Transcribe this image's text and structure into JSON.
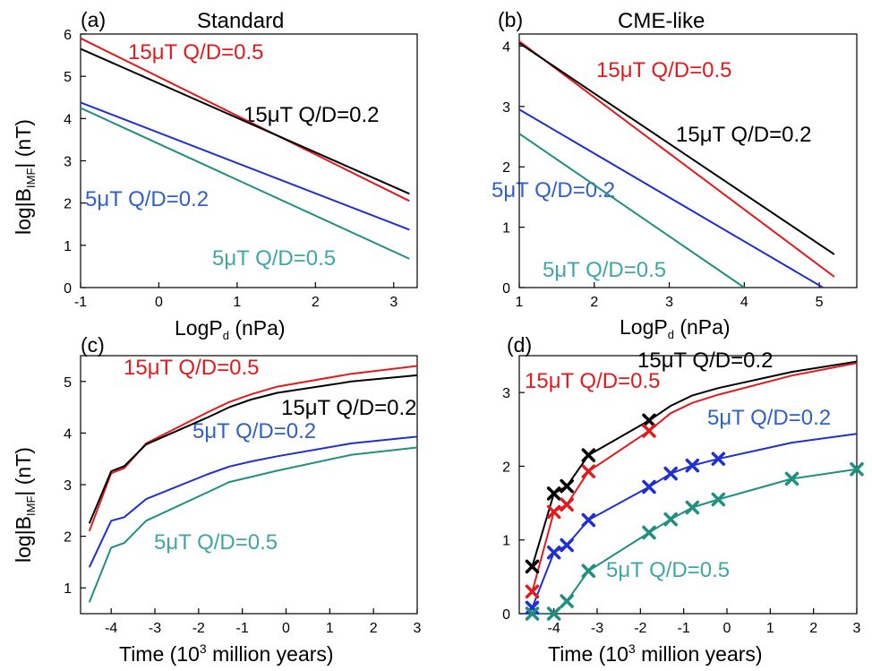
{
  "colors": {
    "red": "#e31a1c",
    "black": "#000000",
    "blue": "#1f2fd0",
    "teal": "#1f8f80",
    "blue_text": "#2f5fcc",
    "teal_text": "#3fa5a5"
  },
  "chart_data": [
    {
      "panel": "a",
      "tag": "(a)",
      "title": "Standard",
      "type": "line",
      "xlabel_main": "LogP",
      "xlabel_sub": "d",
      "xlabel_unit": " (nPa)",
      "ylabel_main": "log|B",
      "ylabel_sub": "IMF",
      "ylabel_unit": "| (nT)",
      "xlim": [
        -1,
        3.3
      ],
      "ylim": [
        0,
        6
      ],
      "xticks": [
        -1,
        0,
        1,
        2,
        3
      ],
      "yticks": [
        0,
        1,
        2,
        3,
        4,
        5,
        6
      ],
      "series": [
        {
          "name": "15μT Q/D=0.5",
          "color": "#e31a1c",
          "label_color": "#e31a1c",
          "x": [
            -1,
            3.2
          ],
          "y": [
            5.9,
            2.05
          ]
        },
        {
          "name": "15μT Q/D=0.2",
          "color": "#000000",
          "label_color": "#000000",
          "x": [
            -1,
            3.2
          ],
          "y": [
            5.65,
            2.22
          ]
        },
        {
          "name": "5μT Q/D=0.2",
          "color": "#1f2fd0",
          "label_color": "#2f5fcc",
          "x": [
            -1,
            3.2
          ],
          "y": [
            4.38,
            1.37
          ]
        },
        {
          "name": "5μT Q/D=0.5",
          "color": "#1f8f80",
          "label_color": "#3fa5a5",
          "x": [
            -1,
            3.2
          ],
          "y": [
            4.25,
            0.68
          ]
        }
      ]
    },
    {
      "panel": "b",
      "tag": "(b)",
      "title": "CME-like",
      "type": "line",
      "xlabel_main": "LogP",
      "xlabel_sub": "d",
      "xlabel_unit": " (nPa)",
      "ylabel_main": "",
      "ylabel_sub": "",
      "ylabel_unit": "",
      "xlim": [
        1,
        5.5
      ],
      "ylim": [
        0,
        4.2
      ],
      "xticks": [
        1,
        2,
        3,
        4,
        5
      ],
      "yticks": [
        0,
        1,
        2,
        3,
        4
      ],
      "series": [
        {
          "name": "15μT Q/D=0.5",
          "color": "#e31a1c",
          "label_color": "#e31a1c",
          "x": [
            1,
            5.2
          ],
          "y": [
            4.08,
            0.18
          ]
        },
        {
          "name": "15μT Q/D=0.2",
          "color": "#000000",
          "label_color": "#000000",
          "x": [
            1,
            5.2
          ],
          "y": [
            4.05,
            0.55
          ]
        },
        {
          "name": "5μT Q/D=0.2",
          "color": "#1f2fd0",
          "label_color": "#2f5fcc",
          "x": [
            1,
            5.05
          ],
          "y": [
            2.95,
            0.0
          ]
        },
        {
          "name": "5μT Q/D=0.5",
          "color": "#1f8f80",
          "label_color": "#3fa5a5",
          "x": [
            1,
            4.0
          ],
          "y": [
            2.55,
            0.0
          ]
        }
      ]
    },
    {
      "panel": "c",
      "tag": "(c)",
      "title": "",
      "type": "line",
      "xlabel_main": "Time (10",
      "xlabel_sup": "3",
      "xlabel_unit": " million years)",
      "ylabel_main": "log|B",
      "ylabel_sub": "IMF",
      "ylabel_unit": "| (nT)",
      "xlim": [
        -4.7,
        3
      ],
      "ylim": [
        0.5,
        5.5
      ],
      "xticks": [
        -4,
        -3,
        -2,
        -1,
        0,
        1,
        2,
        3
      ],
      "yticks": [
        1,
        2,
        3,
        4,
        5
      ],
      "series": [
        {
          "name": "15μT Q/D=0.5",
          "color": "#e31a1c",
          "label_color": "#e31a1c",
          "x": [
            -4.5,
            -4.0,
            -3.7,
            -3.2,
            -1.8,
            -1.3,
            -0.8,
            -0.2,
            1.5,
            3.0
          ],
          "y": [
            2.1,
            3.22,
            3.32,
            3.8,
            4.4,
            4.6,
            4.75,
            4.9,
            5.15,
            5.3
          ]
        },
        {
          "name": "15μT Q/D=0.2",
          "color": "#000000",
          "label_color": "#000000",
          "x": [
            -4.5,
            -4.0,
            -3.7,
            -3.2,
            -1.8,
            -1.3,
            -0.8,
            -0.2,
            1.5,
            3.0
          ],
          "y": [
            2.25,
            3.26,
            3.36,
            3.78,
            4.3,
            4.5,
            4.65,
            4.78,
            5.0,
            5.12
          ]
        },
        {
          "name": "5μT Q/D=0.2",
          "color": "#1f2fd0",
          "label_color": "#2f5fcc",
          "x": [
            -4.5,
            -4.0,
            -3.7,
            -3.2,
            -1.8,
            -1.3,
            -0.8,
            -0.2,
            1.5,
            3.0
          ],
          "y": [
            1.4,
            2.3,
            2.37,
            2.72,
            3.2,
            3.35,
            3.45,
            3.55,
            3.8,
            3.93
          ]
        },
        {
          "name": "5μT Q/D=0.5",
          "color": "#1f8f80",
          "label_color": "#3fa5a5",
          "x": [
            -4.5,
            -4.0,
            -3.7,
            -3.2,
            -1.8,
            -1.3,
            -0.8,
            -0.2,
            1.5,
            3.0
          ],
          "y": [
            0.72,
            1.78,
            1.87,
            2.3,
            2.85,
            3.05,
            3.15,
            3.27,
            3.58,
            3.72
          ]
        }
      ]
    },
    {
      "panel": "d",
      "tag": "(d)",
      "title": "",
      "type": "line",
      "xlabel_main": "Time (10",
      "xlabel_sup": "3",
      "xlabel_unit": " million years)",
      "ylabel_main": "",
      "ylabel_sub": "",
      "ylabel_unit": "",
      "xlim": [
        -4.8,
        3
      ],
      "ylim": [
        0,
        3.5
      ],
      "xticks": [
        -4,
        -3,
        -2,
        -1,
        0,
        1,
        2,
        3
      ],
      "yticks": [
        0,
        1,
        2,
        3
      ],
      "series": [
        {
          "name": "15μT Q/D=0.2",
          "color": "#000000",
          "label_color": "#000000",
          "x": [
            -4.5,
            -4.0,
            -3.7,
            -3.2,
            -1.8,
            -1.3,
            -0.8,
            -0.2,
            1.5,
            3.0
          ],
          "y": [
            0.64,
            1.63,
            1.73,
            2.15,
            2.62,
            2.82,
            2.96,
            3.06,
            3.28,
            3.42
          ],
          "markers": [
            0,
            1,
            2,
            3,
            4
          ]
        },
        {
          "name": "15μT Q/D=0.5",
          "color": "#e31a1c",
          "label_color": "#e31a1c",
          "x": [
            -4.5,
            -4.0,
            -3.7,
            -3.2,
            -1.8,
            -1.3,
            -0.8,
            -0.2,
            1.5,
            3.0
          ],
          "y": [
            0.3,
            1.38,
            1.48,
            1.93,
            2.48,
            2.72,
            2.86,
            2.97,
            3.23,
            3.4
          ],
          "markers": [
            0,
            1,
            2,
            3,
            4
          ]
        },
        {
          "name": "5μT Q/D=0.2",
          "color": "#1f2fd0",
          "label_color": "#2f5fcc",
          "x": [
            -4.5,
            -4.0,
            -3.7,
            -3.2,
            -1.8,
            -1.3,
            -0.8,
            -0.2,
            1.5,
            3.0
          ],
          "y": [
            0.08,
            0.83,
            0.93,
            1.27,
            1.72,
            1.9,
            2.01,
            2.1,
            2.32,
            2.44
          ],
          "markers": [
            0,
            1,
            2,
            3,
            4,
            5,
            6,
            7
          ]
        },
        {
          "name": "5μT Q/D=0.5",
          "color": "#1f8f80",
          "label_color": "#3fa5a5",
          "x": [
            -4.5,
            -4.0,
            -3.7,
            -3.2,
            -1.8,
            -1.3,
            -0.8,
            -0.2,
            1.5,
            3.0
          ],
          "y": [
            0.0,
            0.0,
            0.17,
            0.58,
            1.1,
            1.28,
            1.44,
            1.55,
            1.83,
            1.96
          ],
          "markers": [
            0,
            1,
            2,
            3,
            4,
            5,
            6,
            7,
            8,
            9
          ]
        }
      ]
    }
  ]
}
